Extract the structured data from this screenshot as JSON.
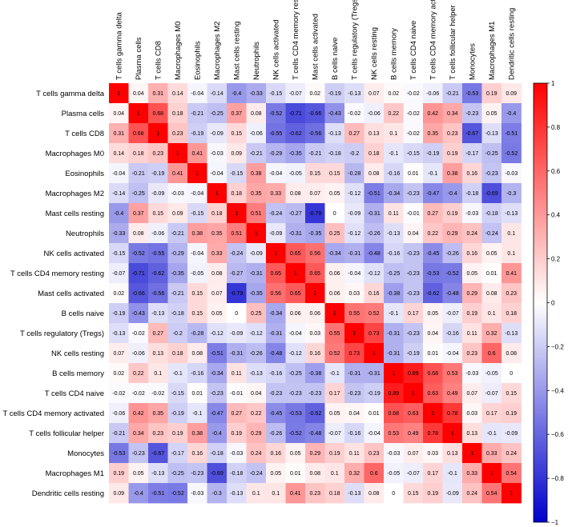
{
  "chart_data": {
    "type": "heatmap",
    "title": "",
    "labels": [
      "T cells gamma delta",
      "Plasma cells",
      "T cells CD8",
      "Macrophages M0",
      "Eosinophils",
      "Macrophages M2",
      "Mast cells resting",
      "Neutrophils",
      "NK cells activated",
      "T cells CD4 memory resting",
      "Mast cells activated",
      "B cells naive",
      "T cells regulatory (Tregs)",
      "NK cells resting",
      "B cells memory",
      "T cells CD4 naive",
      "T cells CD4 memory activated",
      "T cells follicular helper",
      "Monocytes",
      "Macrophages M1",
      "Dendritic cells resting"
    ],
    "matrix": [
      [
        "1",
        "0.04",
        "0.31",
        "0.14",
        "-0.04",
        "-0.14",
        "-0.4",
        "-0.33",
        "-0.15",
        "-0.07",
        "0.02",
        "-0.19",
        "-0.13",
        "0.07",
        "0.02",
        "-0.02",
        "-0.06",
        "-0.21",
        "-0.53",
        "0.19",
        "0.09"
      ],
      [
        "0.04",
        "1",
        "0.68",
        "0.18",
        "-0.21",
        "-0.25",
        "0.37",
        "0.08",
        "-0.52",
        "-0.71",
        "-0.66",
        "-0.43",
        "-0.02",
        "-0.06",
        "0.22",
        "-0.02",
        "0.42",
        "0.34",
        "-0.23",
        "0.05",
        "-0.4"
      ],
      [
        "0.31",
        "0.68",
        "1",
        "0.23",
        "-0.19",
        "-0.09",
        "0.15",
        "-0.06",
        "-0.55",
        "-0.62",
        "-0.56",
        "-0.13",
        "0.27",
        "0.13",
        "0.1",
        "-0.02",
        "0.35",
        "0.23",
        "-0.67",
        "-0.13",
        "-0.51"
      ],
      [
        "0.14",
        "0.18",
        "0.23",
        "1",
        "0.41",
        "-0.03",
        "0.09",
        "-0.21",
        "-0.29",
        "-0.35",
        "-0.21",
        "-0.18",
        "-0.2",
        "0.18",
        "-0.1",
        "-0.15",
        "-0.19",
        "0.19",
        "-0.17",
        "-0.25",
        "-0.52"
      ],
      [
        "-0.04",
        "-0.21",
        "-0.19",
        "0.41",
        "1",
        "-0.04",
        "-0.15",
        "0.38",
        "-0.04",
        "-0.05",
        "0.15",
        "0.15",
        "-0.28",
        "0.08",
        "-0.16",
        "0.01",
        "-0.1",
        "0.38",
        "0.16",
        "-0.23",
        "-0.03"
      ],
      [
        "-0.14",
        "-0.25",
        "-0.09",
        "-0.03",
        "-0.04",
        "1",
        "0.18",
        "0.35",
        "0.33",
        "0.08",
        "0.07",
        "0.05",
        "-0.12",
        "-0.51",
        "-0.34",
        "-0.23",
        "-0.47",
        "-0.4",
        "-0.18",
        "-0.69",
        "-0.3"
      ],
      [
        "-0.4",
        "0.37",
        "0.15",
        "0.09",
        "-0.15",
        "0.18",
        "1",
        "0.51",
        "-0.24",
        "-0.27",
        "-0.79",
        "0",
        "-0.09",
        "-0.31",
        "0.11",
        "-0.01",
        "0.27",
        "0.19",
        "-0.03",
        "-0.18",
        "-0.13"
      ],
      [
        "-0.33",
        "0.08",
        "-0.06",
        "-0.21",
        "0.38",
        "0.35",
        "0.51",
        "1",
        "-0.09",
        "-0.31",
        "-0.35",
        "0.25",
        "-0.12",
        "-0.26",
        "-0.13",
        "0.04",
        "0.22",
        "0.29",
        "0.24",
        "-0.24",
        "0.1"
      ],
      [
        "-0.15",
        "-0.52",
        "-0.55",
        "-0.29",
        "-0.04",
        "0.33",
        "-0.24",
        "-0.09",
        "1",
        "0.65",
        "0.56",
        "-0.34",
        "-0.31",
        "-0.48",
        "-0.16",
        "-0.23",
        "-0.45",
        "-0.26",
        "0.16",
        "0.05",
        "0.1"
      ],
      [
        "-0.07",
        "-0.71",
        "-0.62",
        "-0.35",
        "-0.05",
        "0.08",
        "-0.27",
        "-0.31",
        "0.65",
        "1",
        "0.65",
        "0.06",
        "-0.04",
        "-0.12",
        "-0.25",
        "-0.23",
        "-0.53",
        "-0.52",
        "0.05",
        "0.01",
        "0.41"
      ],
      [
        "0.02",
        "-0.66",
        "-0.56",
        "-0.21",
        "0.15",
        "0.07",
        "-0.79",
        "-0.35",
        "0.56",
        "0.65",
        "1",
        "0.06",
        "0.03",
        "0.16",
        "-0.38",
        "-0.23",
        "-0.62",
        "-0.48",
        "0.29",
        "0.08",
        "0.23"
      ],
      [
        "-0.19",
        "-0.43",
        "-0.13",
        "-0.18",
        "0.15",
        "0.05",
        "0",
        "0.25",
        "-0.34",
        "0.06",
        "0.06",
        "1",
        "0.55",
        "0.52",
        "-0.1",
        "0.17",
        "0.05",
        "-0.07",
        "0.19",
        "0.1",
        "0.18"
      ],
      [
        "-0.13",
        "-0.02",
        "0.27",
        "-0.2",
        "-0.28",
        "-0.12",
        "-0.09",
        "-0.12",
        "-0.31",
        "-0.04",
        "0.03",
        "0.55",
        "1",
        "0.73",
        "-0.31",
        "-0.23",
        "0.04",
        "-0.16",
        "0.11",
        "0.32",
        "-0.13"
      ],
      [
        "0.07",
        "-0.06",
        "0.13",
        "0.18",
        "0.08",
        "-0.51",
        "-0.31",
        "-0.26",
        "-0.48",
        "-0.12",
        "0.16",
        "0.52",
        "0.73",
        "1",
        "-0.31",
        "-0.19",
        "0.01",
        "-0.04",
        "0.23",
        "0.6",
        "0.08"
      ],
      [
        "0.02",
        "0.22",
        "0.1",
        "-0.1",
        "-0.16",
        "-0.34",
        "0.11",
        "-0.13",
        "-0.16",
        "-0.25",
        "-0.38",
        "-0.1",
        "-0.31",
        "-0.31",
        "1",
        "0.89",
        "0.68",
        "0.53",
        "-0.03",
        "-0.05",
        "0"
      ],
      [
        "-0.02",
        "-0.02",
        "-0.02",
        "-0.15",
        "0.01",
        "-0.23",
        "-0.01",
        "0.04",
        "-0.23",
        "-0.23",
        "-0.23",
        "0.17",
        "-0.23",
        "-0.19",
        "0.89",
        "1",
        "0.63",
        "0.49",
        "0.07",
        "-0.07",
        "0.15"
      ],
      [
        "-0.06",
        "0.42",
        "0.35",
        "-0.19",
        "-0.1",
        "-0.47",
        "0.27",
        "0.22",
        "-0.45",
        "-0.53",
        "-0.62",
        "0.05",
        "0.04",
        "0.01",
        "0.68",
        "0.63",
        "1",
        "0.78",
        "0.03",
        "0.17",
        "0.19"
      ],
      [
        "-0.21",
        "0.34",
        "0.23",
        "0.19",
        "0.38",
        "-0.4",
        "0.19",
        "0.29",
        "-0.26",
        "-0.52",
        "-0.48",
        "-0.07",
        "-0.16",
        "-0.04",
        "0.53",
        "0.49",
        "0.78",
        "1",
        "0.13",
        "-0.1",
        "-0.09"
      ],
      [
        "-0.53",
        "-0.23",
        "-0.67",
        "-0.17",
        "0.16",
        "-0.18",
        "-0.03",
        "0.24",
        "0.16",
        "0.05",
        "0.29",
        "0.19",
        "0.11",
        "0.23",
        "-0.03",
        "0.07",
        "0.03",
        "0.13",
        "1",
        "0.33",
        "0.24"
      ],
      [
        "0.19",
        "0.05",
        "-0.13",
        "-0.25",
        "-0.23",
        "-0.69",
        "-0.18",
        "-0.24",
        "0.05",
        "0.01",
        "0.08",
        "0.1",
        "0.32",
        "0.6",
        "-0.05",
        "-0.07",
        "0.17",
        "-0.1",
        "0.33",
        "1",
        "0.54"
      ],
      [
        "0.09",
        "-0.4",
        "-0.51",
        "-0.52",
        "-0.03",
        "-0.3",
        "-0.13",
        "0.1",
        "0.1",
        "0.41",
        "0.23",
        "0.18",
        "-0.13",
        "0.08",
        "0",
        "0.15",
        "0.19",
        "-0.09",
        "0.24",
        "0.54",
        "1"
      ]
    ],
    "color_scale": {
      "low": "#0000cc",
      "mid": "#ffffff",
      "high": "#ff0000",
      "range": [
        -1,
        1
      ]
    },
    "colorbar_ticks": [
      "1",
      "0.8",
      "0.6",
      "0.4",
      "0.2",
      "0",
      "−0.2",
      "−0.4",
      "−0.6",
      "−0.8",
      "−1"
    ]
  }
}
